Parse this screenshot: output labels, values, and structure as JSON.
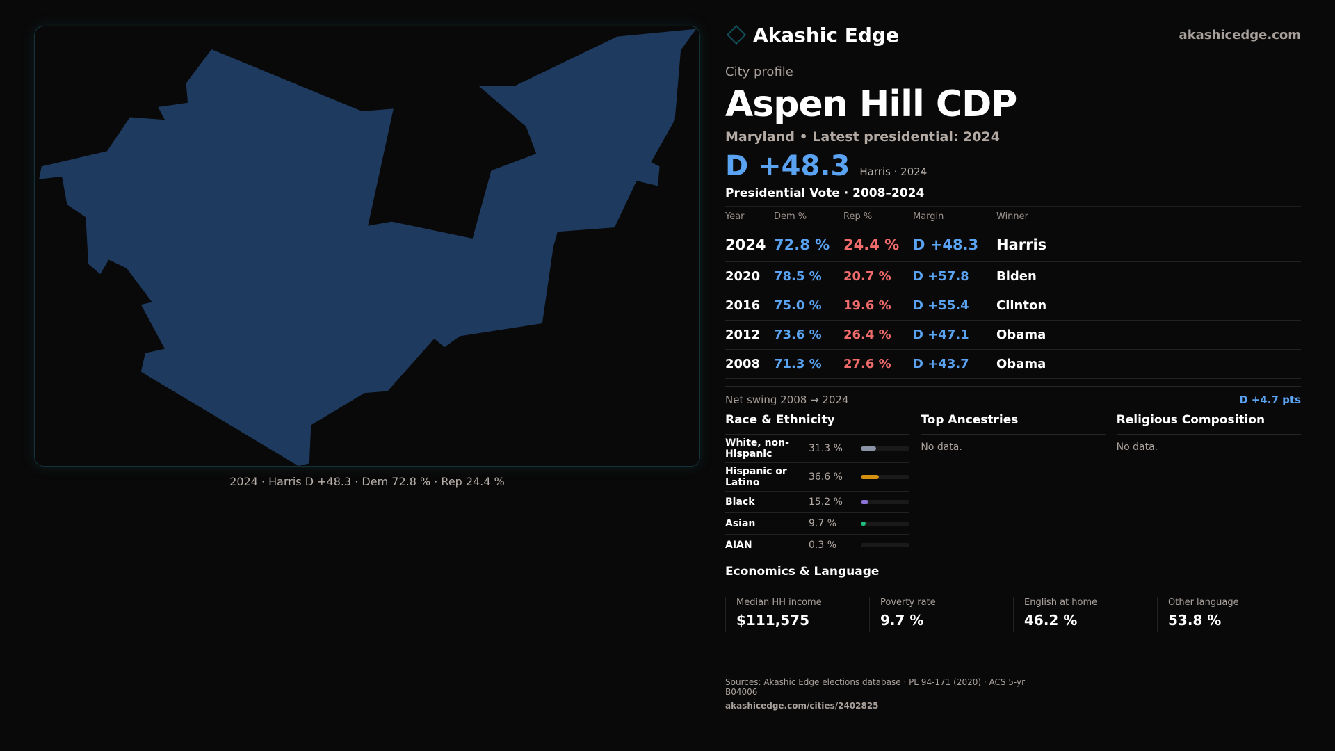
{
  "brand": {
    "name": "Akashic Edge",
    "site": "akashicedge.com"
  },
  "kicker": "City profile",
  "title": "Aspen Hill CDP",
  "subtitle": "Maryland • Latest presidential: 2024",
  "headline": {
    "margin": "D +48.3",
    "note": "Harris · 2024"
  },
  "map": {
    "fill": "#1e3a5f",
    "caption": "2024 · Harris D +48.3 · Dem 72.8 % · Rep 24.4 %"
  },
  "vote": {
    "title": "Presidential Vote · 2008–2024",
    "headers": [
      "Year",
      "Dem %",
      "Rep %",
      "Margin",
      "Winner"
    ],
    "rows": [
      [
        "2024",
        "72.8 %",
        "24.4 %",
        "D +48.3",
        "Harris"
      ],
      [
        "2020",
        "78.5 %",
        "20.7 %",
        "D +57.8",
        "Biden"
      ],
      [
        "2016",
        "75.0 %",
        "19.6 %",
        "D +55.4",
        "Clinton"
      ],
      [
        "2012",
        "73.6 %",
        "26.4 %",
        "D +47.1",
        "Obama"
      ],
      [
        "2008",
        "71.3 %",
        "27.6 %",
        "D +43.7",
        "Obama"
      ]
    ],
    "swing_label": "Net swing 2008 → 2024",
    "swing_value": "D +4.7 pts"
  },
  "race": {
    "title": "Race & Ethnicity",
    "items": [
      {
        "label": "White, non-Hispanic",
        "pct": "31.3 %",
        "value": 31.3,
        "color": "#8a94a6"
      },
      {
        "label": "Hispanic or Latino",
        "pct": "36.6 %",
        "value": 36.6,
        "color": "#d4900f"
      },
      {
        "label": "Black",
        "pct": "15.2 %",
        "value": 15.2,
        "color": "#8b74d8"
      },
      {
        "label": "Asian",
        "pct": "9.7 %",
        "value": 9.7,
        "color": "#1fbf7f"
      },
      {
        "label": "AIAN",
        "pct": "0.3 %",
        "value": 0.3,
        "color": "#d46a1f"
      }
    ]
  },
  "ancestries": {
    "title": "Top Ancestries",
    "empty": "No data."
  },
  "religion": {
    "title": "Religious Composition",
    "empty": "No data."
  },
  "econ": {
    "title": "Economics & Language",
    "stats": [
      {
        "label": "Median HH income",
        "value": "$111,575"
      },
      {
        "label": "Poverty rate",
        "value": "9.7 %"
      },
      {
        "label": "English at home",
        "value": "46.2 %"
      },
      {
        "label": "Other language",
        "value": "53.8 %"
      }
    ]
  },
  "footer": {
    "sources": "Sources: Akashic Edge elections database · PL 94-171 (2020) · ACS 5-yr B04006",
    "url": "akashicedge.com/cities/2402825"
  }
}
